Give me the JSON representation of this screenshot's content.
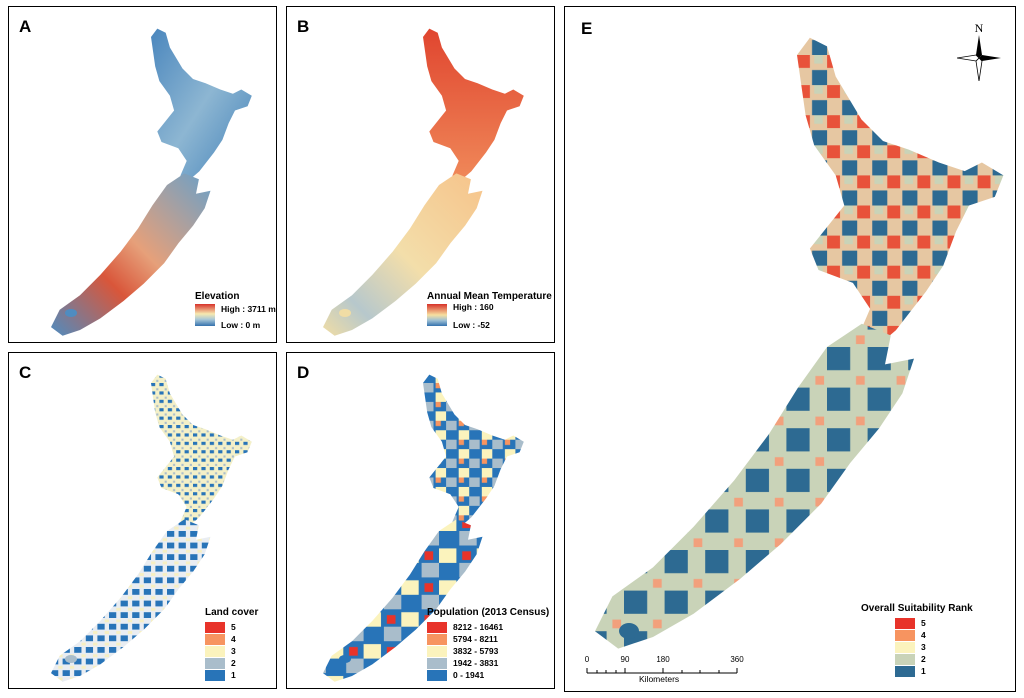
{
  "colors": {
    "red": "#e8332a",
    "orange": "#f79460",
    "cream": "#fbf3bd",
    "lightblue": "#a9bdcb",
    "blue": "#2874b8",
    "darkteal": "#2d6a92",
    "sage": "#c9d3b8"
  },
  "panels": {
    "a": {
      "label": "A",
      "legend_title": "Elevation",
      "high": "High : 3711 m",
      "low": "Low : 0 m"
    },
    "b": {
      "label": "B",
      "legend_title": "Annual Mean Temperature",
      "high": "High : 160",
      "low": "Low : -52"
    },
    "c": {
      "label": "C",
      "legend_title": "Land cover",
      "classes": [
        "5",
        "4",
        "3",
        "2",
        "1"
      ]
    },
    "d": {
      "label": "D",
      "legend_title": "Population (2013 Census)",
      "classes": [
        "8212 - 16461",
        "5794 - 8211",
        "3832 - 5793",
        "1942 - 3831",
        "0 - 1941"
      ]
    },
    "e": {
      "label": "E",
      "legend_title": "Overall Suitability Rank",
      "classes": [
        "5",
        "4",
        "3",
        "2",
        "1"
      ],
      "north": "N",
      "scale_ticks": [
        "0",
        "90",
        "180",
        "360"
      ],
      "scale_unit": "Kilometers"
    }
  }
}
